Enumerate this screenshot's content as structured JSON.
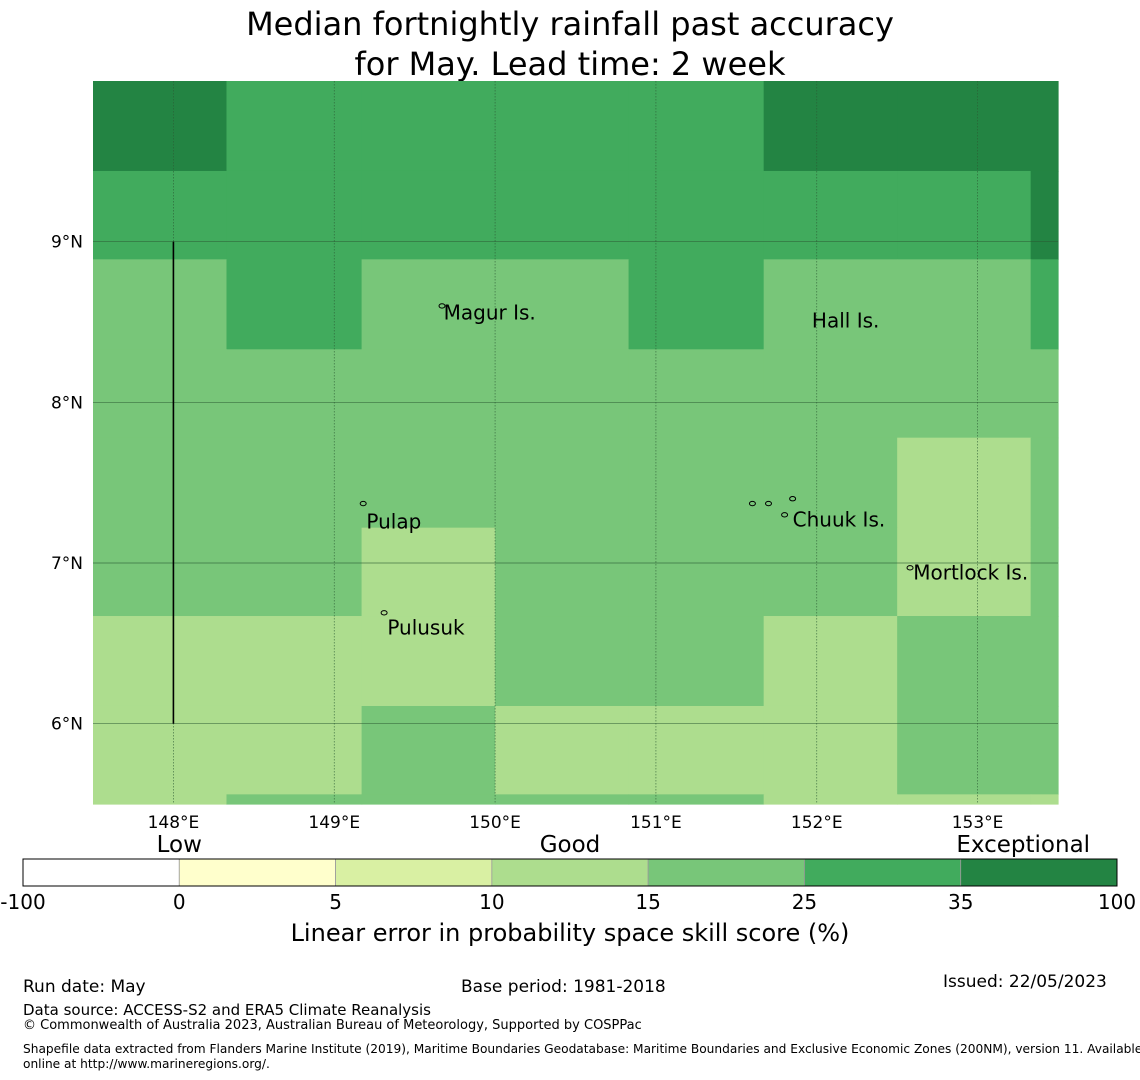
{
  "title": {
    "line1": "Median fortnightly rainfall past accuracy",
    "line2": "for May. Lead time: 2 week"
  },
  "map": {
    "lon_range": [
      147.5,
      153.5
    ],
    "lat_range": [
      5.5,
      10.0
    ],
    "lon_ticks": [
      {
        "value": 148,
        "label": "148°E"
      },
      {
        "value": 149,
        "label": "149°E"
      },
      {
        "value": 150,
        "label": "150°E"
      },
      {
        "value": 151,
        "label": "151°E"
      },
      {
        "value": 152,
        "label": "152°E"
      },
      {
        "value": 153,
        "label": "153°E"
      }
    ],
    "lat_ticks": [
      {
        "value": 9,
        "label": "9°N"
      },
      {
        "value": 8,
        "label": "8°N"
      },
      {
        "value": 7,
        "label": "7°N"
      },
      {
        "value": 6,
        "label": "6°N"
      }
    ],
    "grid_lon_edges": [
      147.5,
      148.33,
      149.17,
      150.0,
      150.83,
      151.67,
      152.5,
      153.33,
      153.5
    ],
    "grid_lat_edges": [
      10.0,
      9.44,
      8.89,
      8.33,
      7.78,
      7.22,
      6.67,
      6.11,
      5.56,
      5.5
    ],
    "grid_class_rows": [
      [
        6,
        5,
        5,
        5,
        5,
        6,
        6,
        6
      ],
      [
        5,
        5,
        5,
        5,
        5,
        5,
        5,
        6
      ],
      [
        4,
        5,
        4,
        4,
        5,
        4,
        4,
        5
      ],
      [
        4,
        4,
        4,
        4,
        4,
        4,
        4,
        4
      ],
      [
        4,
        4,
        4,
        4,
        4,
        4,
        3,
        4
      ],
      [
        4,
        4,
        3,
        4,
        4,
        4,
        3,
        4
      ],
      [
        3,
        3,
        3,
        4,
        4,
        3,
        4,
        4
      ],
      [
        3,
        3,
        4,
        3,
        3,
        3,
        4,
        4
      ],
      [
        3,
        4,
        4,
        4,
        4,
        3,
        3,
        3
      ]
    ],
    "boundary_line": {
      "lon": 148.0,
      "lat_from": 9.0,
      "lat_to": 6.0
    },
    "places": [
      {
        "name": "Magur Is.",
        "lon": 149.68,
        "lat": 8.55
      },
      {
        "name": "Hall Is.",
        "lon": 151.97,
        "lat": 8.5
      },
      {
        "name": "Pulap",
        "lon": 149.2,
        "lat": 7.25
      },
      {
        "name": "Chuuk Is.",
        "lon": 151.85,
        "lat": 7.26
      },
      {
        "name": "Mortlock Is.",
        "lon": 152.6,
        "lat": 6.93
      },
      {
        "name": "Pulusuk",
        "lon": 149.33,
        "lat": 6.59
      }
    ],
    "islands": [
      {
        "lon": 149.67,
        "lat": 8.6
      },
      {
        "lon": 149.18,
        "lat": 7.37
      },
      {
        "lon": 149.31,
        "lat": 6.69
      },
      {
        "lon": 151.85,
        "lat": 7.4
      },
      {
        "lon": 151.6,
        "lat": 7.37
      },
      {
        "lon": 151.7,
        "lat": 7.37
      },
      {
        "lon": 151.8,
        "lat": 7.3
      },
      {
        "lon": 152.58,
        "lat": 6.97
      }
    ]
  },
  "colorbar": {
    "categories": [
      {
        "label": "Low",
        "position": 1
      },
      {
        "label": "Good",
        "position": 3.5
      },
      {
        "label": "Exceptional",
        "position": 6.4
      }
    ],
    "bins": [
      {
        "from": "-100",
        "to": "0",
        "color": "#ffffff"
      },
      {
        "from": "0",
        "to": "5",
        "color": "#ffffcc"
      },
      {
        "from": "5",
        "to": "10",
        "color": "#d9f0a3"
      },
      {
        "from": "10",
        "to": "15",
        "color": "#addd8e"
      },
      {
        "from": "15",
        "to": "25",
        "color": "#78c679"
      },
      {
        "from": "25",
        "to": "35",
        "color": "#41ab5d"
      },
      {
        "from": "35",
        "to": "100",
        "color": "#238443"
      }
    ],
    "tick_labels": [
      "-100",
      "0",
      "5",
      "10",
      "15",
      "25",
      "35",
      "100"
    ],
    "label": "Linear error in probability space skill score (%)"
  },
  "footer": {
    "run_date": "Run date: May",
    "base_period": "Base period: 1981-2018",
    "issued": "Issued: 22/05/2023",
    "data_source": "Data source: ACCESS-S2 and ERA5 Climate Reanalysis",
    "copyright": "© Commonwealth of Australia 2023, Australian Bureau of Meteorology, Supported by COSPPac",
    "shapefile_line1": "Shapefile data extracted from Flanders Marine Institute (2019), Maritime Boundaries Geodatabase: Maritime Boundaries and Exclusive Economic Zones (200NM), version 11. Available",
    "shapefile_line2": "online at http://www.marineregions.org/."
  }
}
